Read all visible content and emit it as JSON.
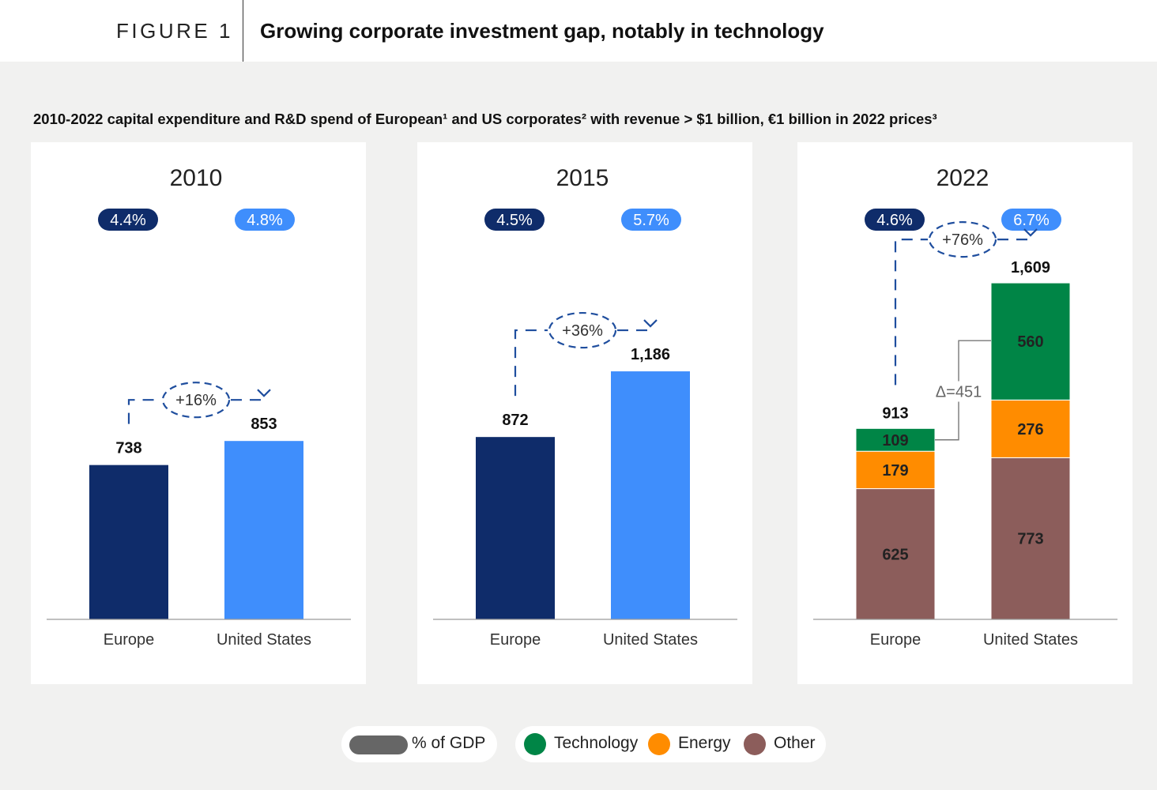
{
  "header": {
    "figure_label": "FIGURE 1",
    "title": "Growing corporate investment gap, notably in technology"
  },
  "subtitle": "2010-2022 capital expenditure and R&D spend of European¹ and US corporates² with revenue > $1 billion, €1 billion in 2022 prices³",
  "colors": {
    "europe": "#0f2c6a",
    "us": "#3f8efc",
    "technology": "#008546",
    "energy": "#ff8c00",
    "other": "#8c5d5b",
    "gdp_swatch": "#666666",
    "arrow": "#1f4e9e"
  },
  "legend": {
    "gdp_label": "% of GDP",
    "items": [
      {
        "label": "Technology",
        "color": "#008546"
      },
      {
        "label": "Energy",
        "color": "#ff8c00"
      },
      {
        "label": "Other",
        "color": "#8c5d5b"
      }
    ]
  },
  "chart_data": [
    {
      "type": "bar",
      "title": "2010",
      "categories": [
        "Europe",
        "United States"
      ],
      "values": [
        738,
        853
      ],
      "gdp_share": [
        "4.4%",
        "4.8%"
      ],
      "value_labels": [
        "738",
        "853"
      ],
      "change_label": "+16%",
      "ylim": [
        0,
        1700
      ]
    },
    {
      "type": "bar",
      "title": "2015",
      "categories": [
        "Europe",
        "United States"
      ],
      "values": [
        872,
        1186
      ],
      "gdp_share": [
        "4.5%",
        "5.7%"
      ],
      "value_labels": [
        "872",
        "1,186"
      ],
      "change_label": "+36%",
      "ylim": [
        0,
        1700
      ]
    },
    {
      "type": "bar",
      "stacked": true,
      "title": "2022",
      "categories": [
        "Europe",
        "United States"
      ],
      "series": [
        {
          "name": "Other",
          "values": [
            625,
            773
          ]
        },
        {
          "name": "Energy",
          "values": [
            179,
            276
          ]
        },
        {
          "name": "Technology",
          "values": [
            109,
            560
          ]
        }
      ],
      "totals": [
        913,
        1609
      ],
      "total_labels": [
        "913",
        "1,609"
      ],
      "gdp_share": [
        "4.6%",
        "6.7%"
      ],
      "change_label": "+76%",
      "delta_label": "Δ=451",
      "ylim": [
        0,
        1700
      ]
    }
  ]
}
